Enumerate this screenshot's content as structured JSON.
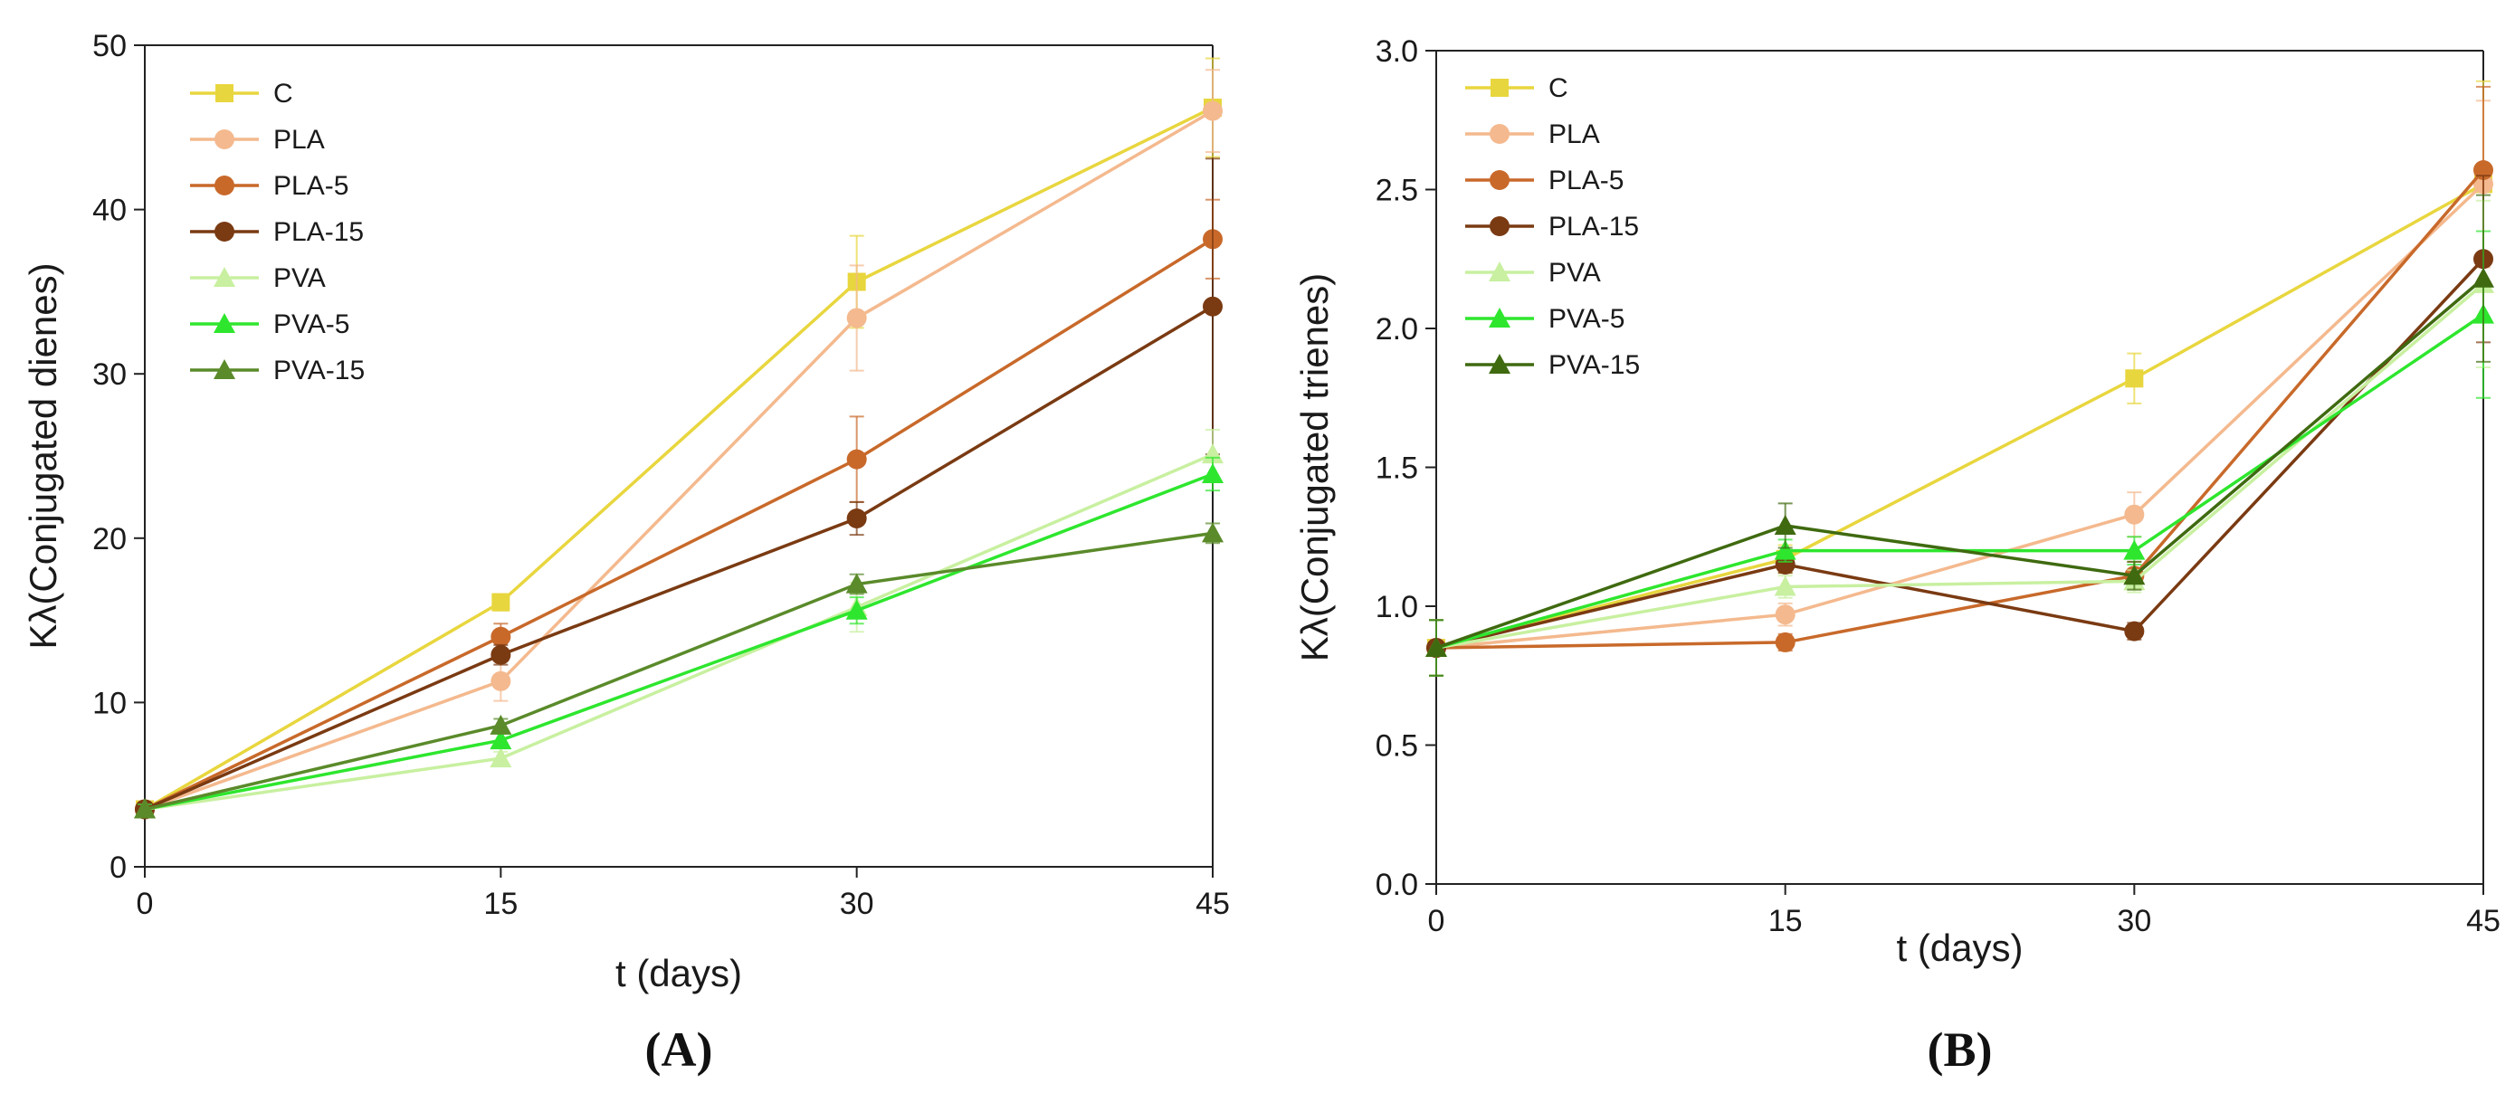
{
  "chart_data": [
    {
      "type": "line",
      "panel_label": "(A)",
      "xlabel": "t (days)",
      "ylabel": "Kλ(Conjugated dienes)",
      "x": [
        0,
        15,
        30,
        45
      ],
      "xticks": [
        "0",
        "15",
        "30",
        "45"
      ],
      "ylim": [
        0,
        50
      ],
      "yticks": [
        "0",
        "10",
        "20",
        "30",
        "40",
        "50"
      ],
      "xlim": [
        0,
        45
      ],
      "legend_position": "top-left",
      "series": [
        {
          "name": "C",
          "marker": "square",
          "color": "#e8d63e",
          "values": [
            3.5,
            16.1,
            35.6,
            46.2
          ],
          "errors": [
            0.3,
            0.5,
            2.8,
            3.0
          ]
        },
        {
          "name": "PLA",
          "marker": "circle",
          "color": "#f4b98e",
          "values": [
            3.5,
            11.3,
            33.4,
            46.0
          ],
          "errors": [
            0.3,
            1.2,
            3.2,
            2.5
          ]
        },
        {
          "name": "PLA-5",
          "marker": "circle",
          "color": "#c8692a",
          "values": [
            3.5,
            14.0,
            24.8,
            38.2
          ],
          "errors": [
            0.3,
            0.8,
            2.6,
            2.4
          ]
        },
        {
          "name": "PLA-15",
          "marker": "circle",
          "color": "#7a3a12",
          "values": [
            3.5,
            12.9,
            21.2,
            34.1
          ],
          "errors": [
            0.3,
            0.6,
            1.0,
            9.0
          ]
        },
        {
          "name": "PVA",
          "marker": "triangle",
          "color": "#c8f0a0",
          "values": [
            3.5,
            6.6,
            15.8,
            25.1
          ],
          "errors": [
            0.3,
            0.4,
            1.5,
            1.5
          ]
        },
        {
          "name": "PVA-5",
          "marker": "triangle",
          "color": "#2ee62e",
          "values": [
            3.5,
            7.7,
            15.6,
            23.9
          ],
          "errors": [
            0.3,
            0.4,
            0.8,
            1.0
          ]
        },
        {
          "name": "PVA-15",
          "marker": "triangle",
          "color": "#5a8a2a",
          "values": [
            3.5,
            8.6,
            17.2,
            20.3
          ],
          "errors": [
            0.3,
            0.4,
            0.6,
            0.6
          ]
        }
      ]
    },
    {
      "type": "line",
      "panel_label": "(B)",
      "xlabel": "t (days)",
      "ylabel": "Kλ(Conjugated trienes)",
      "x": [
        0,
        15,
        30,
        45
      ],
      "xticks": [
        "0",
        "15",
        "30",
        "45"
      ],
      "ylim": [
        0,
        3
      ],
      "yticks": [
        "0.0",
        "0.5",
        "1.0",
        "1.5",
        "2.0",
        "2.5",
        "3.0"
      ],
      "xlim": [
        0,
        45
      ],
      "legend_position": "top-left",
      "series": [
        {
          "name": "C",
          "marker": "square",
          "color": "#e8d63e",
          "values": [
            0.85,
            1.17,
            1.82,
            2.52
          ],
          "errors": [
            0.1,
            0.05,
            0.09,
            0.37
          ]
        },
        {
          "name": "PLA",
          "marker": "circle",
          "color": "#f4b98e",
          "values": [
            0.85,
            0.97,
            1.33,
            2.52
          ],
          "errors": [
            0.1,
            0.04,
            0.08,
            0.3
          ]
        },
        {
          "name": "PLA-5",
          "marker": "circle",
          "color": "#c8692a",
          "values": [
            0.85,
            0.87,
            1.11,
            2.57
          ],
          "errors": [
            0.1,
            0.03,
            0.05,
            0.3
          ]
        },
        {
          "name": "PLA-15",
          "marker": "circle",
          "color": "#7a3a12",
          "values": [
            0.85,
            1.15,
            0.91,
            2.25
          ],
          "errors": [
            0.1,
            0.03,
            0.03,
            0.3
          ]
        },
        {
          "name": "PVA",
          "marker": "triangle",
          "color": "#c8f0a0",
          "values": [
            0.85,
            1.07,
            1.09,
            2.16
          ],
          "errors": [
            0.1,
            0.04,
            0.04,
            0.3
          ]
        },
        {
          "name": "PVA-5",
          "marker": "triangle",
          "color": "#2ee62e",
          "values": [
            0.85,
            1.2,
            1.2,
            2.05
          ],
          "errors": [
            0.1,
            0.04,
            0.05,
            0.3
          ]
        },
        {
          "name": "PVA-15",
          "marker": "triangle",
          "color": "#3f6a10",
          "values": [
            0.85,
            1.29,
            1.11,
            2.18
          ],
          "errors": [
            0.1,
            0.08,
            0.05,
            0.3
          ]
        }
      ]
    }
  ]
}
